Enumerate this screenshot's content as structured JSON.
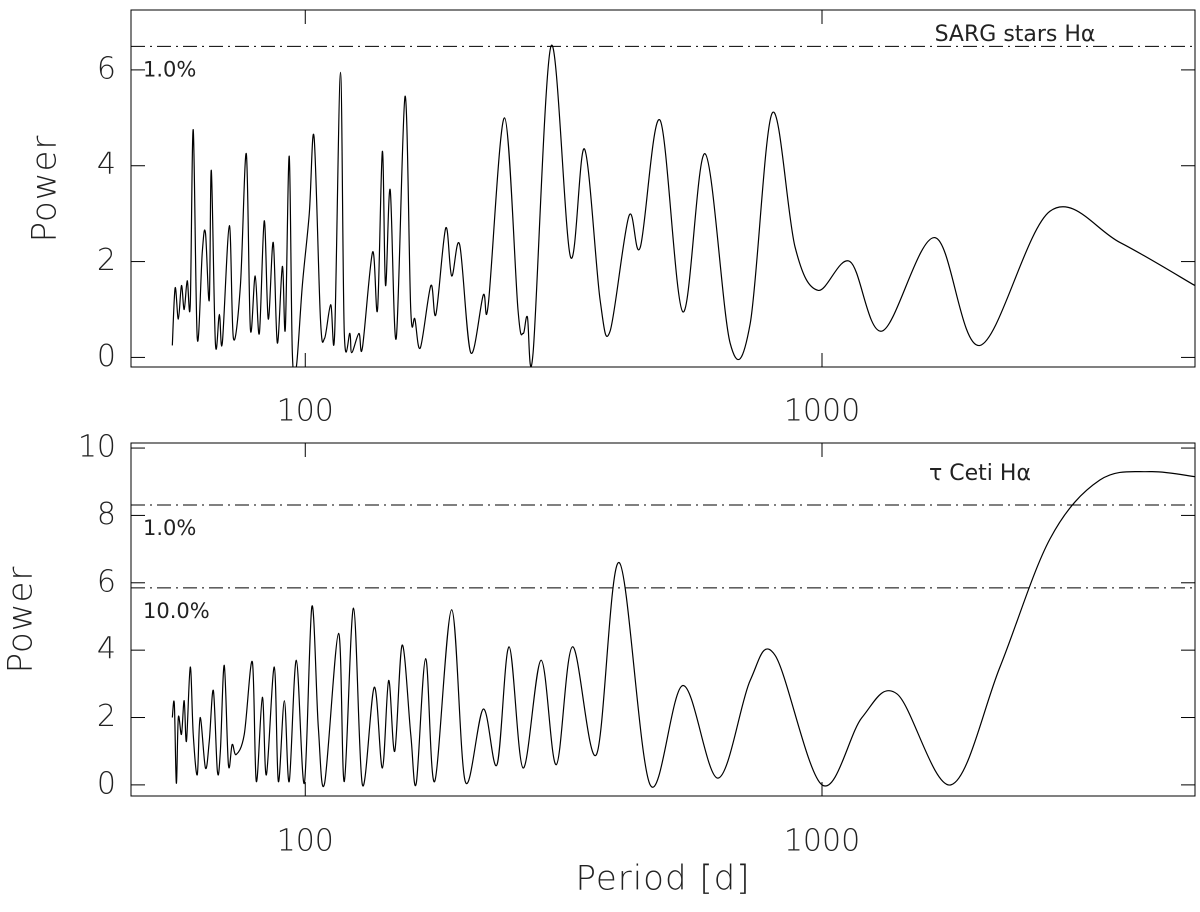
{
  "chart_data": [
    {
      "type": "line",
      "annotation": "SARG stars Hα",
      "ylabel": "Power",
      "xlog": true,
      "color": "#000000",
      "xlim": [
        46,
        5270
      ],
      "xticks": [
        100,
        1000
      ],
      "ylim": [
        -0.2,
        7.25
      ],
      "yticks": [
        0,
        2,
        4,
        6
      ],
      "thresholds": [
        {
          "value": 6.49,
          "label": "1.0%"
        }
      ],
      "x": [
        55.3,
        56.0,
        56.8,
        57.6,
        58.3,
        59.1,
        59.9,
        60.7,
        61.8,
        63.2,
        64.1,
        65.2,
        65.8,
        67.0,
        68.2,
        69.1,
        71.3,
        72.6,
        74.9,
        76.9,
        78.3,
        80.0,
        81.5,
        83.3,
        84.8,
        86.7,
        88.3,
        90.3,
        91.5,
        93.1,
        94.4,
        96.1,
        98.7,
        101.8,
        104,
        107,
        109,
        112,
        114,
        117,
        119,
        122,
        123,
        127,
        129,
        135,
        138,
        141,
        143,
        146,
        150,
        156,
        160,
        163,
        167,
        175,
        179,
        187,
        192,
        199,
        209,
        221,
        226,
        243,
        258,
        264,
        269,
        276,
        299,
        326,
        347,
        372,
        389,
        423,
        445,
        486,
        538,
        594,
        664,
        726,
        801,
        887,
        982,
        1133,
        1307,
        1654,
        2021,
        2761,
        3771,
        5267
      ],
      "values": [
        0.25,
        1.45,
        0.8,
        1.5,
        1.0,
        1.6,
        1.1,
        4.75,
        0.4,
        2.2,
        2.6,
        1.2,
        3.9,
        0.3,
        0.9,
        0.3,
        2.75,
        0.4,
        1.5,
        4.25,
        0.6,
        1.7,
        0.5,
        2.85,
        0.8,
        2.4,
        0.3,
        1.9,
        0.6,
        4.2,
        0.1,
        -0.2,
        1.5,
        3.0,
        4.6,
        0.8,
        0.4,
        1.1,
        0.5,
        5.95,
        0.5,
        0.5,
        0.1,
        0.5,
        0.2,
        2.2,
        1.0,
        4.3,
        1.5,
        3.5,
        0.4,
        5.45,
        1.0,
        0.8,
        0.2,
        1.5,
        0.9,
        2.7,
        1.7,
        2.35,
        0.1,
        1.3,
        1.1,
        5.0,
        1.0,
        0.5,
        0.85,
        0.1,
        6.5,
        2.1,
        4.35,
        1.2,
        0.55,
        2.95,
        2.3,
        4.95,
        0.95,
        4.25,
        0.3,
        0.7,
        5.1,
        2.3,
        1.4,
        2.0,
        0.55,
        2.5,
        0.25,
        3.05,
        2.4,
        1.5
      ]
    },
    {
      "type": "line",
      "annotation": "τ Ceti Hα",
      "ylabel": "Power",
      "xlabel": "Period [d]",
      "xlog": true,
      "color": "#000000",
      "xlim": [
        46,
        5270
      ],
      "xticks": [
        100,
        1000
      ],
      "ylim": [
        -0.33,
        10.15
      ],
      "yticks": [
        0,
        2,
        4,
        6,
        8,
        10
      ],
      "thresholds": [
        {
          "value": 8.31,
          "label": "1.0%"
        },
        {
          "value": 5.85,
          "label": "10.0%"
        }
      ],
      "x": [
        55.3,
        55.8,
        56.3,
        56.8,
        57.6,
        58.3,
        58.9,
        59.9,
        60.7,
        61.8,
        62.6,
        64.1,
        65.2,
        66.4,
        67.6,
        68.5,
        69.7,
        71.0,
        72.2,
        73.5,
        76.2,
        79.0,
        80.4,
        82.6,
        84.1,
        87.1,
        88.7,
        91.1,
        93.1,
        96.1,
        99.6,
        103,
        106,
        109,
        116,
        119,
        124,
        129,
        136,
        141,
        145,
        149,
        154,
        160,
        164,
        171,
        178,
        192,
        204,
        221,
        235,
        248,
        264,
        286,
        306,
        329,
        366,
        405,
        465,
        538,
        629,
        726,
        811,
        1000,
        1195,
        1397,
        1776,
        2210,
        2761,
        3449,
        4310,
        5267
      ],
      "values": [
        2.0,
        2.4,
        0.05,
        2.0,
        1.5,
        2.5,
        1.3,
        3.5,
        1.5,
        0.3,
        2.0,
        0.5,
        1.3,
        2.8,
        0.4,
        1.0,
        3.55,
        0.6,
        1.2,
        0.9,
        1.5,
        3.65,
        0.1,
        2.6,
        0.3,
        3.5,
        0.1,
        2.5,
        0.1,
        3.7,
        0.05,
        5.3,
        1.7,
        0.05,
        4.5,
        0.1,
        5.25,
        0.0,
        2.9,
        0.5,
        3.1,
        1.0,
        4.15,
        1.5,
        0.05,
        3.75,
        0.1,
        5.2,
        0.1,
        2.25,
        0.6,
        4.1,
        0.5,
        3.7,
        0.6,
        4.1,
        0.9,
        6.6,
        0.0,
        2.95,
        0.2,
        3.1,
        3.85,
        0.0,
        2.0,
        2.7,
        0.0,
        3.5,
        7.3,
        9.05,
        9.3,
        9.15
      ]
    }
  ]
}
